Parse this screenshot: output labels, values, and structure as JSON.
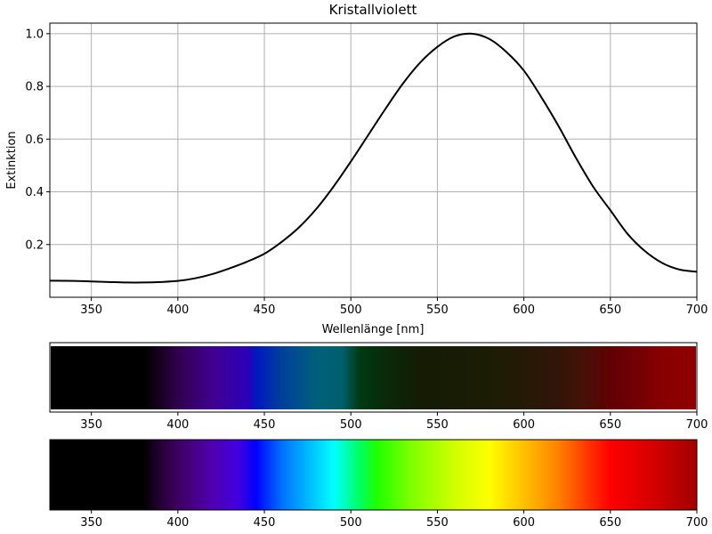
{
  "chart_data": [
    {
      "type": "line",
      "title": "Kristallviolett",
      "xlabel": "Wellenlänge [nm]",
      "ylabel": "Extinktion",
      "xlim": [
        326,
        700
      ],
      "ylim": [
        0.0,
        1.04
      ],
      "grid": true,
      "xticks": [
        350,
        400,
        450,
        500,
        550,
        600,
        650,
        700
      ],
      "yticks": [
        0.2,
        0.4,
        0.6,
        0.8,
        1.0
      ],
      "ytick_labels": [
        "0.2",
        "0.4",
        "0.6",
        "0.8",
        "1.0"
      ],
      "line_color": "#000000",
      "series": [
        {
          "x": [
            326,
            340,
            350,
            360,
            370,
            380,
            390,
            400,
            410,
            420,
            430,
            440,
            450,
            460,
            470,
            480,
            490,
            500,
            510,
            520,
            530,
            540,
            550,
            560,
            570,
            580,
            590,
            600,
            610,
            620,
            630,
            640,
            650,
            660,
            670,
            680,
            690,
            700
          ],
          "y": [
            0.063,
            0.062,
            0.06,
            0.058,
            0.056,
            0.056,
            0.058,
            0.062,
            0.072,
            0.088,
            0.11,
            0.135,
            0.165,
            0.21,
            0.265,
            0.335,
            0.42,
            0.515,
            0.615,
            0.715,
            0.81,
            0.89,
            0.95,
            0.99,
            1.0,
            0.98,
            0.93,
            0.86,
            0.76,
            0.65,
            0.53,
            0.42,
            0.33,
            0.24,
            0.175,
            0.13,
            0.105,
            0.097
          ]
        }
      ]
    },
    {
      "type": "heatmap",
      "description": "absorbed spectrum strip",
      "xlim": [
        326,
        700
      ],
      "xticks": [
        350,
        400,
        450,
        500,
        550,
        600,
        650,
        700
      ],
      "stops": [
        {
          "x": 326,
          "color": "#000000"
        },
        {
          "x": 380,
          "color": "#000000"
        },
        {
          "x": 390,
          "color": "#1a0022"
        },
        {
          "x": 400,
          "color": "#320050"
        },
        {
          "x": 420,
          "color": "#420090"
        },
        {
          "x": 440,
          "color": "#2a00b8"
        },
        {
          "x": 445,
          "color": "#0018c0"
        },
        {
          "x": 460,
          "color": "#00409a"
        },
        {
          "x": 480,
          "color": "#00607a"
        },
        {
          "x": 495,
          "color": "#005f6a"
        },
        {
          "x": 505,
          "color": "#003a12"
        },
        {
          "x": 520,
          "color": "#0a2a08"
        },
        {
          "x": 540,
          "color": "#141c04"
        },
        {
          "x": 560,
          "color": "#181c04"
        },
        {
          "x": 580,
          "color": "#1c1c04"
        },
        {
          "x": 600,
          "color": "#241a06"
        },
        {
          "x": 620,
          "color": "#321508"
        },
        {
          "x": 635,
          "color": "#461206"
        },
        {
          "x": 650,
          "color": "#600004"
        },
        {
          "x": 665,
          "color": "#720004"
        },
        {
          "x": 680,
          "color": "#880000"
        },
        {
          "x": 700,
          "color": "#900000"
        }
      ]
    },
    {
      "type": "heatmap",
      "description": "visible spectrum strip",
      "xlim": [
        326,
        700
      ],
      "xticks": [
        350,
        400,
        450,
        500,
        550,
        600,
        650,
        700
      ],
      "stops": [
        {
          "x": 326,
          "color": "#000000"
        },
        {
          "x": 380,
          "color": "#000000"
        },
        {
          "x": 390,
          "color": "#250035"
        },
        {
          "x": 400,
          "color": "#3e0060"
        },
        {
          "x": 420,
          "color": "#5000b0"
        },
        {
          "x": 435,
          "color": "#4000e0"
        },
        {
          "x": 445,
          "color": "#0000ff"
        },
        {
          "x": 460,
          "color": "#0070ff"
        },
        {
          "x": 475,
          "color": "#00b8ff"
        },
        {
          "x": 490,
          "color": "#00ffff"
        },
        {
          "x": 505,
          "color": "#00ff60"
        },
        {
          "x": 515,
          "color": "#20ff00"
        },
        {
          "x": 535,
          "color": "#80ff00"
        },
        {
          "x": 560,
          "color": "#d0ff00"
        },
        {
          "x": 580,
          "color": "#ffff00"
        },
        {
          "x": 600,
          "color": "#ffc000"
        },
        {
          "x": 620,
          "color": "#ff8000"
        },
        {
          "x": 640,
          "color": "#ff2800"
        },
        {
          "x": 650,
          "color": "#ff0000"
        },
        {
          "x": 675,
          "color": "#d40000"
        },
        {
          "x": 700,
          "color": "#a00000"
        }
      ]
    }
  ]
}
